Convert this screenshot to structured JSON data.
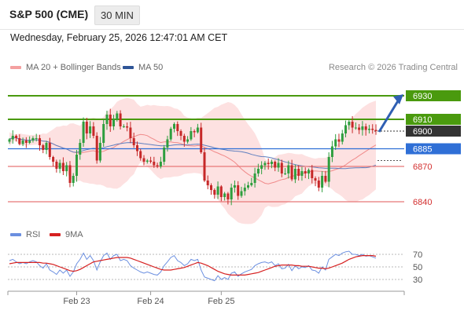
{
  "header": {
    "title": "S&P 500 (CME)",
    "interval": "30 MIN",
    "timestamp": "Wednesday, February 25, 2026 12:47:01 AM CET"
  },
  "legend": {
    "ma20_label": "MA 20 + Bollinger Bands",
    "ma50_label": "MA 50",
    "credit": "Research © 2026 Trading Central"
  },
  "rsi_legend": {
    "rsi_label": "RSI",
    "ma_label": "9MA"
  },
  "colors": {
    "up": "#2e9e3e",
    "down": "#c62828",
    "band": "#fde1e1",
    "ma20": "#f08a8a",
    "ma50": "#5f7fbf",
    "resistance": "#4a9a0e",
    "pivot": "#2f6fd6",
    "support": "#e87878",
    "last": "#333333",
    "rsi": "#6b8fe0",
    "rsi_ma": "#d62020"
  },
  "chart_data": [
    {
      "type": "candlestick",
      "x_ticks": [
        "Feb 23",
        "Feb 24",
        "Feb 25"
      ],
      "ylim": [
        6826,
        6938
      ],
      "grid": false,
      "legend_position": "top-left",
      "indicators": [
        "MA 20 + Bollinger Bands",
        "MA 50"
      ],
      "levels": [
        {
          "value": 6930,
          "label": "6930",
          "kind": "resistance"
        },
        {
          "value": 6910,
          "label": "6910",
          "kind": "resistance"
        },
        {
          "value": 6900,
          "label": "6900",
          "kind": "last"
        },
        {
          "value": 6885,
          "label": "6885",
          "kind": "pivot"
        },
        {
          "value": 6870,
          "label": "6870",
          "kind": "support"
        },
        {
          "value": 6840,
          "label": "6840",
          "kind": "support"
        }
      ],
      "forecast": {
        "direction": "up",
        "from": 6900,
        "to": 6930
      },
      "tick_positions": [
        20,
        42,
        63
      ],
      "close": [
        6893,
        6896,
        6894,
        6889,
        6892,
        6890,
        6892,
        6894,
        6894,
        6888,
        6884,
        6890,
        6878,
        6874,
        6868,
        6873,
        6866,
        6871,
        6856,
        6862,
        6880,
        6890,
        6908,
        6898,
        6904,
        6896,
        6875,
        6890,
        6906,
        6914,
        6904,
        6910,
        6915,
        6904,
        6904,
        6903,
        6894,
        6888,
        6883,
        6877,
        6874,
        6875,
        6874,
        6871,
        6870,
        6874,
        6886,
        6893,
        6902,
        6906,
        6900,
        6896,
        6891,
        6893,
        6900,
        6899,
        6903,
        6882,
        6858,
        6854,
        6850,
        6846,
        6853,
        6844,
        6847,
        6842,
        6852,
        6854,
        6845,
        6849,
        6852,
        6854,
        6856,
        6864,
        6868,
        6871,
        6873,
        6872,
        6874,
        6869,
        6873,
        6864,
        6864,
        6871,
        6859,
        6868,
        6862,
        6866,
        6864,
        6867,
        6860,
        6858,
        6852,
        6862,
        6857,
        6878,
        6887,
        6893,
        6891,
        6898,
        6905,
        6908,
        6903,
        6903,
        6901,
        6904,
        6901,
        6902,
        6901,
        6900
      ],
      "open": [
        6891,
        6893,
        6896,
        6894,
        6889,
        6892,
        6890,
        6892,
        6894,
        6894,
        6888,
        6884,
        6890,
        6878,
        6874,
        6868,
        6873,
        6866,
        6871,
        6856,
        6862,
        6880,
        6890,
        6908,
        6898,
        6904,
        6896,
        6875,
        6890,
        6906,
        6914,
        6904,
        6910,
        6915,
        6904,
        6904,
        6903,
        6894,
        6888,
        6883,
        6877,
        6874,
        6875,
        6874,
        6871,
        6870,
        6874,
        6886,
        6893,
        6902,
        6906,
        6900,
        6896,
        6891,
        6893,
        6900,
        6899,
        6903,
        6882,
        6858,
        6854,
        6850,
        6846,
        6853,
        6844,
        6847,
        6842,
        6852,
        6854,
        6845,
        6849,
        6852,
        6854,
        6856,
        6864,
        6868,
        6871,
        6873,
        6872,
        6874,
        6869,
        6873,
        6864,
        6864,
        6871,
        6859,
        6868,
        6862,
        6866,
        6864,
        6867,
        6860,
        6858,
        6852,
        6862,
        6857,
        6878,
        6887,
        6893,
        6891,
        6898,
        6905,
        6908,
        6903,
        6903,
        6901,
        6904,
        6901,
        6902,
        6901
      ]
    },
    {
      "type": "line",
      "name": "RSI",
      "ylim": [
        20,
        80
      ],
      "y_ticks": [
        70,
        50,
        30
      ],
      "series": [
        {
          "name": "RSI",
          "values": [
            60,
            62,
            58,
            55,
            57,
            55,
            58,
            60,
            58,
            52,
            48,
            55,
            45,
            42,
            38,
            45,
            40,
            45,
            35,
            42,
            55,
            62,
            72,
            62,
            68,
            60,
            45,
            58,
            68,
            72,
            62,
            68,
            70,
            60,
            62,
            60,
            52,
            48,
            45,
            42,
            40,
            42,
            40,
            38,
            37,
            42,
            52,
            58,
            65,
            68,
            60,
            57,
            52,
            55,
            62,
            60,
            62,
            45,
            34,
            32,
            30,
            28,
            36,
            30,
            33,
            30,
            40,
            42,
            35,
            39,
            42,
            44,
            46,
            52,
            55,
            57,
            58,
            56,
            58,
            52,
            55,
            47,
            48,
            54,
            44,
            52,
            47,
            50,
            49,
            52,
            45,
            44,
            40,
            50,
            45,
            62,
            66,
            70,
            68,
            72,
            74,
            75,
            70,
            70,
            68,
            70,
            67,
            68,
            66,
            64
          ]
        },
        {
          "name": "9MA",
          "values": [
            55,
            56,
            57,
            57,
            57,
            57,
            57,
            57,
            57,
            57,
            56,
            56,
            55,
            54,
            52,
            50,
            48,
            46,
            44,
            43,
            44,
            46,
            49,
            52,
            55,
            58,
            59,
            60,
            61,
            62,
            63,
            64,
            65,
            65,
            65,
            65,
            64,
            62,
            60,
            58,
            56,
            54,
            52,
            50,
            48,
            46,
            45,
            45,
            45,
            46,
            47,
            48,
            49,
            51,
            53,
            55,
            57,
            56,
            54,
            52,
            49,
            46,
            43,
            41,
            39,
            38,
            37,
            37,
            37,
            37,
            37,
            38,
            39,
            40,
            41,
            43,
            45,
            47,
            49,
            51,
            52,
            53,
            53,
            53,
            53,
            52,
            52,
            51,
            51,
            51,
            50,
            49,
            48,
            48,
            47,
            48,
            50,
            52,
            54,
            56,
            59,
            62,
            64,
            66,
            67,
            68,
            68,
            68,
            68,
            67
          ]
        }
      ]
    }
  ]
}
